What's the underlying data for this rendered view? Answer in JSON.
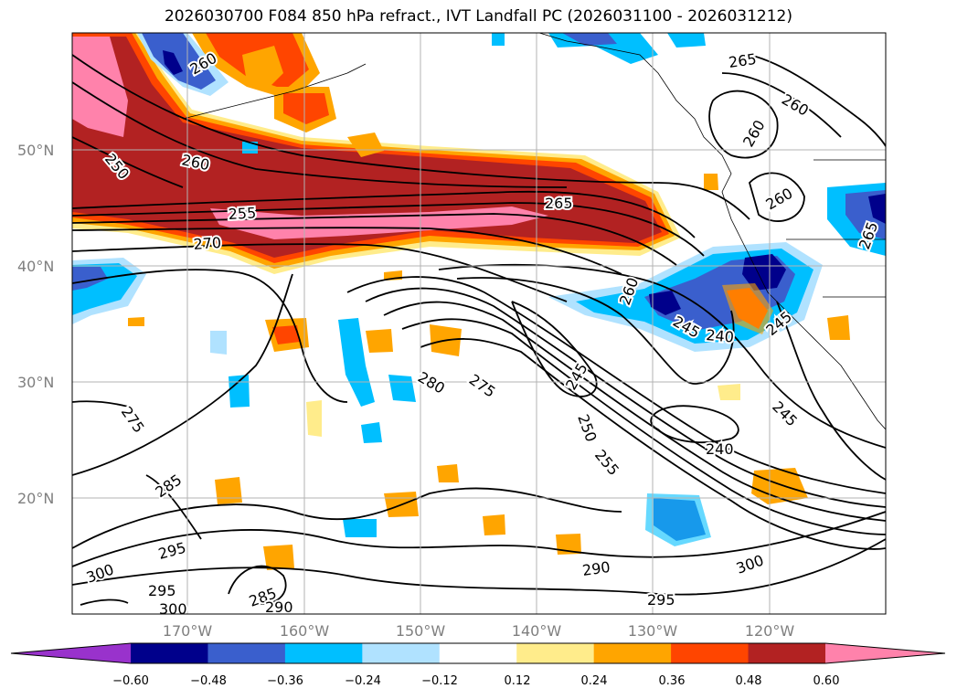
{
  "title": "2026030700 F084 850 hPa refract., IVT Landfall PC (2026031100 - 2026031212)",
  "lat_ticks": [
    "50°N",
    "40°N",
    "30°N",
    "20°N"
  ],
  "lon_ticks": [
    "170°W",
    "160°W",
    "150°W",
    "140°W",
    "130°W",
    "120°W"
  ],
  "colorbar": {
    "colors": [
      "#9932CC",
      "#00008B",
      "#3A5FCD",
      "#00BFFF",
      "#B0E2FF",
      "#FFFFFF",
      "#FFEC8B",
      "#FFA500",
      "#FF4500",
      "#B22222",
      "#FF82AB"
    ],
    "labels": [
      "−0.60",
      "−0.48",
      "−0.36",
      "−0.24",
      "−0.12",
      "0.12",
      "0.24",
      "0.36",
      "0.48",
      "0.60"
    ]
  },
  "contour_labels": [
    "260",
    "250",
    "260",
    "255",
    "270",
    "265",
    "265",
    "260",
    "260",
    "260",
    "265",
    "260",
    "245",
    "240",
    "245",
    "280",
    "275",
    "245",
    "250",
    "255",
    "240",
    "245",
    "275",
    "285",
    "295",
    "300",
    "295",
    "300",
    "285",
    "290",
    "290",
    "295",
    "300"
  ]
}
